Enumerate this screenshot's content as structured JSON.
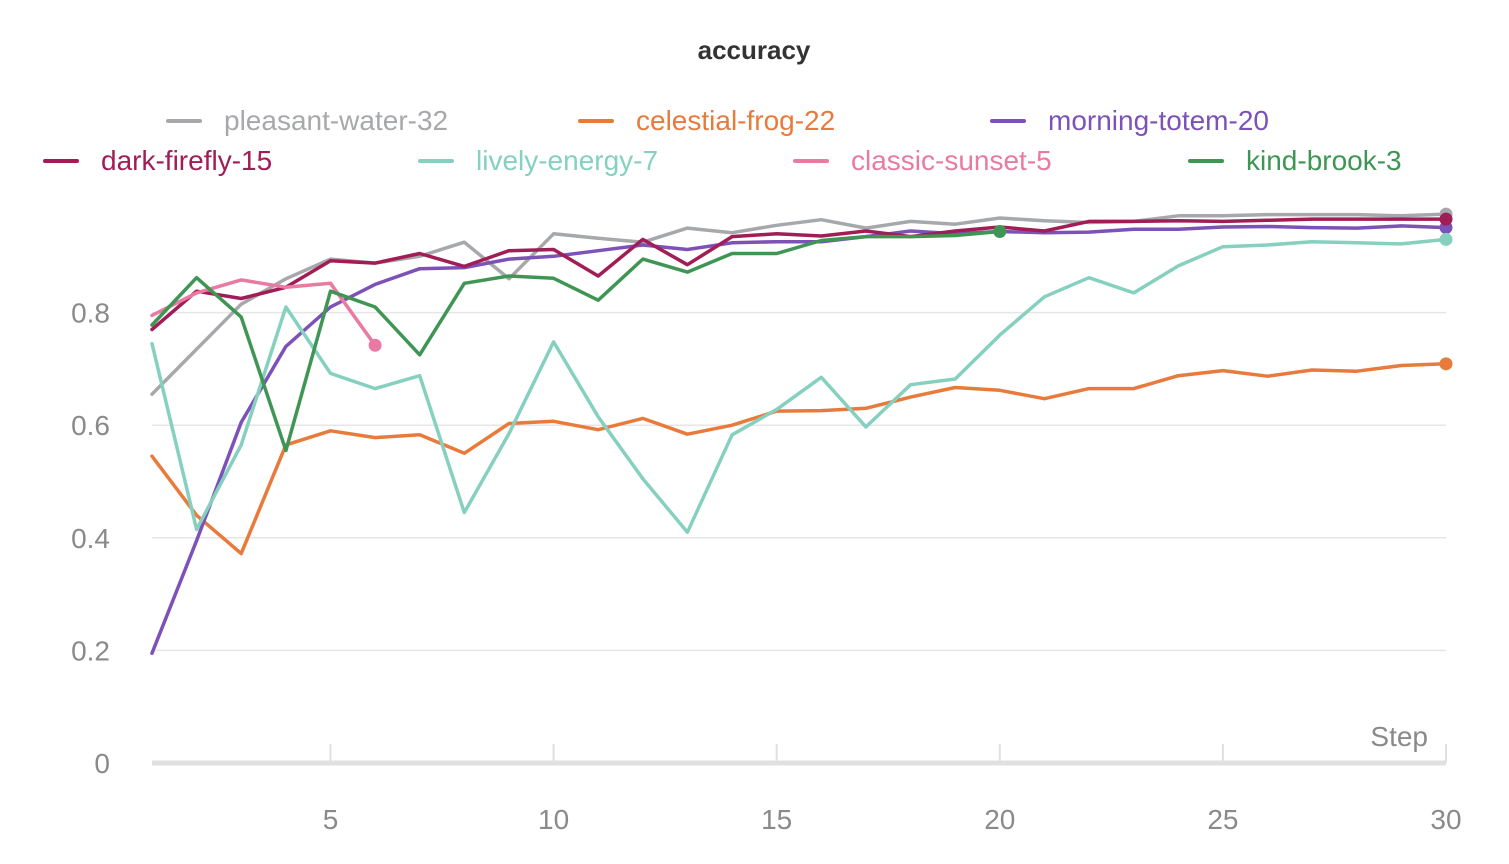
{
  "chart_data": {
    "type": "line",
    "title": "accuracy",
    "xlabel": "Step",
    "ylabel": "",
    "xlim": [
      1,
      30
    ],
    "ylim": [
      0,
      1
    ],
    "x_ticks": [
      5,
      10,
      15,
      20,
      25,
      30
    ],
    "y_ticks": [
      0,
      0.2,
      0.4,
      0.6,
      0.8
    ],
    "y_tick_labels": [
      "0",
      "0.2",
      "0.4",
      "0.6",
      "0.8"
    ],
    "x_tick_labels": [
      "5",
      "10",
      "15",
      "20",
      "25",
      "30"
    ],
    "legend_position": "top",
    "series": [
      {
        "name": "pleasant-water-32",
        "color": "#a6a8ab",
        "x": [
          1,
          2,
          3,
          4,
          5,
          6,
          7,
          8,
          9,
          10,
          11,
          12,
          13,
          14,
          15,
          16,
          17,
          18,
          19,
          20,
          21,
          22,
          23,
          24,
          25,
          26,
          27,
          28,
          29,
          30
        ],
        "values": [
          0.655,
          0.735,
          0.815,
          0.86,
          0.895,
          0.888,
          0.9,
          0.925,
          0.86,
          0.94,
          0.932,
          0.925,
          0.95,
          0.942,
          0.955,
          0.965,
          0.95,
          0.962,
          0.957,
          0.968,
          0.963,
          0.96,
          0.962,
          0.972,
          0.972,
          0.974,
          0.974,
          0.974,
          0.972,
          0.975
        ]
      },
      {
        "name": "celestial-frog-22",
        "color": "#e87b3c",
        "x": [
          1,
          2,
          3,
          4,
          5,
          6,
          7,
          8,
          9,
          10,
          11,
          12,
          13,
          14,
          15,
          16,
          17,
          18,
          19,
          20,
          21,
          22,
          23,
          24,
          25,
          26,
          27,
          28,
          29,
          30
        ],
        "values": [
          0.545,
          0.44,
          0.372,
          0.565,
          0.59,
          0.578,
          0.583,
          0.55,
          0.603,
          0.607,
          0.592,
          0.612,
          0.584,
          0.6,
          0.625,
          0.626,
          0.63,
          0.65,
          0.667,
          0.662,
          0.647,
          0.665,
          0.665,
          0.688,
          0.697,
          0.687,
          0.698,
          0.696,
          0.706,
          0.709
        ]
      },
      {
        "name": "morning-totem-20",
        "color": "#7c51b8",
        "x": [
          1,
          2,
          3,
          4,
          5,
          6,
          7,
          8,
          9,
          10,
          11,
          12,
          13,
          14,
          15,
          16,
          17,
          18,
          19,
          20,
          21,
          22,
          23,
          24,
          25,
          26,
          27,
          28,
          29,
          30
        ],
        "values": [
          0.195,
          0.395,
          0.605,
          0.74,
          0.81,
          0.85,
          0.878,
          0.88,
          0.895,
          0.9,
          0.91,
          0.92,
          0.912,
          0.924,
          0.926,
          0.926,
          0.935,
          0.945,
          0.94,
          0.944,
          0.942,
          0.943,
          0.948,
          0.948,
          0.952,
          0.953,
          0.951,
          0.95,
          0.954,
          0.951
        ]
      },
      {
        "name": "dark-firefly-15",
        "color": "#a11d56",
        "x": [
          1,
          2,
          3,
          4,
          5,
          6,
          7,
          8,
          9,
          10,
          11,
          12,
          13,
          14,
          15,
          16,
          17,
          18,
          19,
          20,
          21,
          22,
          23,
          24,
          25,
          26,
          27,
          28,
          29,
          30
        ],
        "values": [
          0.77,
          0.838,
          0.825,
          0.845,
          0.892,
          0.888,
          0.905,
          0.882,
          0.91,
          0.912,
          0.865,
          0.93,
          0.885,
          0.935,
          0.94,
          0.936,
          0.945,
          0.935,
          0.945,
          0.952,
          0.945,
          0.962,
          0.962,
          0.963,
          0.962,
          0.964,
          0.966,
          0.966,
          0.966,
          0.966
        ]
      },
      {
        "name": "lively-energy-7",
        "color": "#86d0bf",
        "x": [
          1,
          2,
          3,
          4,
          5,
          6,
          7,
          8,
          9,
          10,
          11,
          12,
          13,
          14,
          15,
          16,
          17,
          18,
          19,
          20,
          21,
          22,
          23,
          24,
          25,
          26,
          27,
          28,
          29,
          30
        ],
        "values": [
          0.745,
          0.415,
          0.565,
          0.81,
          0.692,
          0.665,
          0.688,
          0.445,
          0.585,
          0.748,
          0.615,
          0.505,
          0.41,
          0.583,
          0.628,
          0.685,
          0.597,
          0.672,
          0.682,
          0.76,
          0.828,
          0.862,
          0.835,
          0.883,
          0.917,
          0.92,
          0.926,
          0.924,
          0.922,
          0.93
        ]
      },
      {
        "name": "classic-sunset-5",
        "color": "#e97aa1",
        "x": [
          1,
          2,
          3,
          4,
          5,
          6
        ],
        "values": [
          0.795,
          0.835,
          0.858,
          0.845,
          0.852,
          0.742
        ]
      },
      {
        "name": "kind-brook-3",
        "color": "#3f9654",
        "x": [
          1,
          2,
          3,
          4,
          5,
          6,
          7,
          8,
          9,
          10,
          11,
          12,
          13,
          14,
          15,
          16,
          17,
          18,
          19,
          20
        ],
        "values": [
          0.778,
          0.862,
          0.792,
          0.555,
          0.838,
          0.81,
          0.725,
          0.852,
          0.865,
          0.861,
          0.822,
          0.895,
          0.872,
          0.905,
          0.905,
          0.928,
          0.935,
          0.935,
          0.937,
          0.944
        ]
      }
    ]
  }
}
